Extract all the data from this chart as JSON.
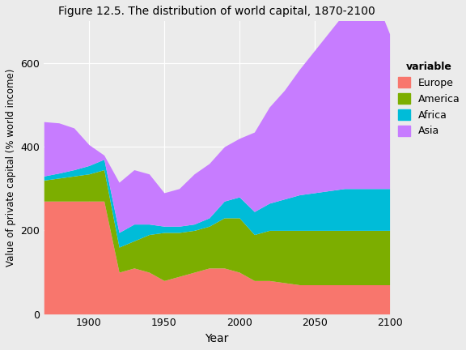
{
  "title": "Figure 12.5. The distribution of world capital, 1870-2100",
  "xlabel": "Year",
  "ylabel": "Value of private capital (% world income)",
  "background_color": "#EBEBEB",
  "plot_background_color": "#EBEBEB",
  "legend_title": "variable",
  "series": {
    "years": [
      1870,
      1880,
      1890,
      1900,
      1910,
      1920,
      1930,
      1940,
      1950,
      1960,
      1970,
      1980,
      1990,
      2000,
      2010,
      2020,
      2030,
      2040,
      2050,
      2060,
      2070,
      2080,
      2090,
      2100
    ],
    "Europe": [
      270,
      270,
      270,
      270,
      270,
      100,
      110,
      100,
      80,
      90,
      100,
      110,
      110,
      100,
      80,
      80,
      75,
      70,
      70,
      70,
      70,
      70,
      70,
      70
    ],
    "America": [
      50,
      55,
      60,
      65,
      75,
      60,
      65,
      90,
      115,
      105,
      100,
      100,
      120,
      130,
      110,
      120,
      125,
      130,
      130,
      130,
      130,
      130,
      130,
      130
    ],
    "Africa": [
      10,
      12,
      15,
      20,
      25,
      35,
      40,
      25,
      15,
      15,
      15,
      20,
      40,
      50,
      55,
      65,
      75,
      85,
      90,
      95,
      100,
      100,
      100,
      100
    ],
    "Asia": [
      130,
      120,
      100,
      50,
      10,
      120,
      130,
      120,
      80,
      90,
      120,
      130,
      130,
      140,
      190,
      230,
      260,
      300,
      340,
      380,
      420,
      450,
      460,
      370
    ]
  },
  "colors": {
    "Europe": "#F8766D",
    "America": "#7CAE00",
    "Africa": "#00BCD8",
    "Asia": "#C77CFF"
  },
  "ylim": [
    0,
    700
  ],
  "yticks": [
    0,
    200,
    400,
    600
  ],
  "xticks": [
    1900,
    1950,
    2000,
    2050,
    2100
  ],
  "figsize": [
    5.76,
    4.32
  ],
  "dpi": 100
}
